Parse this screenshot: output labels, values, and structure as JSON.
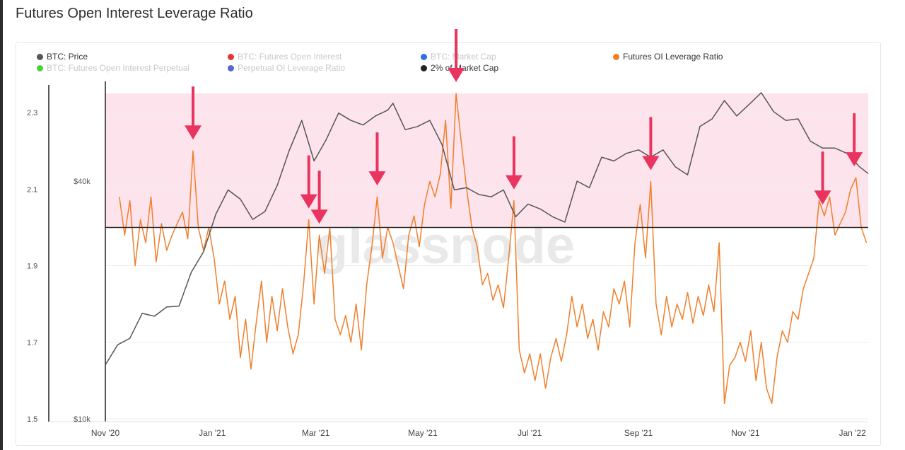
{
  "title": "Futures Open Interest Leverage Ratio",
  "watermark": "glassnode",
  "legend": [
    {
      "label": "BTC: Price",
      "color": "#555555",
      "enabled": true
    },
    {
      "label": "BTC: Futures Open Interest",
      "color": "#e23636",
      "enabled": false
    },
    {
      "label": "BTC: Market Cap",
      "color": "#2f6fe0",
      "enabled": false
    },
    {
      "label": "Futures OI Leverage Ratio",
      "color": "#f07f2a",
      "enabled": true
    },
    {
      "label": "BTC: Futures Open Interest Perpetual",
      "color": "#4cd13a",
      "enabled": false
    },
    {
      "label": "Perpetual OI Leverage Ratio",
      "color": "#5567d8",
      "enabled": false
    },
    {
      "label": "2% of Market Cap",
      "color": "#222222",
      "enabled": true
    }
  ],
  "chart_data": {
    "type": "line",
    "title": "Futures Open Interest Leverage Ratio",
    "x_ticks": [
      "Nov '20",
      "Jan '21",
      "Mar '21",
      "May '21",
      "Jul '21",
      "Sep '21",
      "Nov '21",
      "Jan '22"
    ],
    "x_range": [
      "2020-11-01",
      "2022-01-10"
    ],
    "y_left": {
      "ticks": [
        "1.5",
        "1.7",
        "1.9",
        "2.1",
        "2.3"
      ],
      "range": [
        1.5,
        2.4
      ]
    },
    "y_right": {
      "ticks": [
        "$10k",
        "$40k"
      ],
      "scale": "log"
    },
    "highlight_band": {
      "y_from": 2.0,
      "y_to": 2.35,
      "color": "#fde4ec"
    },
    "reference_line": {
      "name": "2% of Market Cap",
      "y": 2.0
    },
    "series": [
      {
        "name": "Futures OI Leverage Ratio",
        "color": "#f07f2a",
        "axis": "left",
        "points": [
          [
            "2020-11-09",
            2.08
          ],
          [
            "2020-11-12",
            1.98
          ],
          [
            "2020-11-15",
            2.07
          ],
          [
            "2020-11-18",
            1.9
          ],
          [
            "2020-11-21",
            2.02
          ],
          [
            "2020-11-24",
            1.96
          ],
          [
            "2020-11-27",
            2.08
          ],
          [
            "2020-11-30",
            1.91
          ],
          [
            "2020-12-03",
            2.01
          ],
          [
            "2020-12-06",
            1.94
          ],
          [
            "2020-12-09",
            1.98
          ],
          [
            "2020-12-12",
            2.01
          ],
          [
            "2020-12-15",
            2.04
          ],
          [
            "2020-12-18",
            1.97
          ],
          [
            "2020-12-21",
            2.2
          ],
          [
            "2020-12-24",
            2.0
          ],
          [
            "2020-12-27",
            1.94
          ],
          [
            "2020-12-30",
            2.0
          ],
          [
            "2021-01-02",
            1.92
          ],
          [
            "2021-01-05",
            1.8
          ],
          [
            "2021-01-08",
            1.86
          ],
          [
            "2021-01-11",
            1.76
          ],
          [
            "2021-01-14",
            1.82
          ],
          [
            "2021-01-17",
            1.66
          ],
          [
            "2021-01-20",
            1.76
          ],
          [
            "2021-01-23",
            1.63
          ],
          [
            "2021-01-26",
            1.75
          ],
          [
            "2021-01-29",
            1.86
          ],
          [
            "2021-02-01",
            1.7
          ],
          [
            "2021-02-04",
            1.82
          ],
          [
            "2021-02-07",
            1.73
          ],
          [
            "2021-02-10",
            1.84
          ],
          [
            "2021-02-13",
            1.74
          ],
          [
            "2021-02-16",
            1.67
          ],
          [
            "2021-02-19",
            1.72
          ],
          [
            "2021-02-22",
            1.85
          ],
          [
            "2021-02-25",
            2.02
          ],
          [
            "2021-02-28",
            1.8
          ],
          [
            "2021-03-03",
            1.98
          ],
          [
            "2021-03-06",
            1.88
          ],
          [
            "2021-03-09",
            2.0
          ],
          [
            "2021-03-12",
            1.76
          ],
          [
            "2021-03-15",
            1.72
          ],
          [
            "2021-03-18",
            1.77
          ],
          [
            "2021-03-21",
            1.7
          ],
          [
            "2021-03-24",
            1.8
          ],
          [
            "2021-03-27",
            1.68
          ],
          [
            "2021-03-30",
            1.85
          ],
          [
            "2021-04-02",
            1.95
          ],
          [
            "2021-04-05",
            2.08
          ],
          [
            "2021-04-08",
            1.92
          ],
          [
            "2021-04-11",
            2.0
          ],
          [
            "2021-04-14",
            1.96
          ],
          [
            "2021-04-17",
            1.9
          ],
          [
            "2021-04-20",
            1.84
          ],
          [
            "2021-04-23",
            1.98
          ],
          [
            "2021-04-26",
            2.03
          ],
          [
            "2021-04-29",
            1.95
          ],
          [
            "2021-05-02",
            2.06
          ],
          [
            "2021-05-05",
            2.12
          ],
          [
            "2021-05-08",
            2.08
          ],
          [
            "2021-05-11",
            2.14
          ],
          [
            "2021-05-14",
            2.28
          ],
          [
            "2021-05-17",
            2.05
          ],
          [
            "2021-05-20",
            2.35
          ],
          [
            "2021-05-23",
            2.22
          ],
          [
            "2021-05-26",
            2.1
          ],
          [
            "2021-05-29",
            2.0
          ],
          [
            "2021-06-01",
            1.95
          ],
          [
            "2021-06-04",
            1.85
          ],
          [
            "2021-06-07",
            1.88
          ],
          [
            "2021-06-10",
            1.81
          ],
          [
            "2021-06-13",
            1.85
          ],
          [
            "2021-06-16",
            1.79
          ],
          [
            "2021-06-19",
            1.92
          ],
          [
            "2021-06-22",
            2.07
          ],
          [
            "2021-06-25",
            1.68
          ],
          [
            "2021-06-28",
            1.62
          ],
          [
            "2021-07-01",
            1.67
          ],
          [
            "2021-07-04",
            1.6
          ],
          [
            "2021-07-07",
            1.67
          ],
          [
            "2021-07-10",
            1.58
          ],
          [
            "2021-07-13",
            1.66
          ],
          [
            "2021-07-16",
            1.71
          ],
          [
            "2021-07-19",
            1.65
          ],
          [
            "2021-07-22",
            1.72
          ],
          [
            "2021-07-25",
            1.82
          ],
          [
            "2021-07-28",
            1.74
          ],
          [
            "2021-07-31",
            1.8
          ],
          [
            "2021-08-03",
            1.71
          ],
          [
            "2021-08-06",
            1.76
          ],
          [
            "2021-08-09",
            1.68
          ],
          [
            "2021-08-12",
            1.78
          ],
          [
            "2021-08-15",
            1.74
          ],
          [
            "2021-08-18",
            1.84
          ],
          [
            "2021-08-21",
            1.8
          ],
          [
            "2021-08-24",
            1.86
          ],
          [
            "2021-08-27",
            1.74
          ],
          [
            "2021-08-30",
            1.96
          ],
          [
            "2021-09-02",
            2.06
          ],
          [
            "2021-09-05",
            1.92
          ],
          [
            "2021-09-08",
            2.12
          ],
          [
            "2021-09-11",
            1.8
          ],
          [
            "2021-09-14",
            1.72
          ],
          [
            "2021-09-17",
            1.82
          ],
          [
            "2021-09-20",
            1.74
          ],
          [
            "2021-09-23",
            1.8
          ],
          [
            "2021-09-26",
            1.76
          ],
          [
            "2021-09-29",
            1.83
          ],
          [
            "2021-10-02",
            1.75
          ],
          [
            "2021-10-05",
            1.82
          ],
          [
            "2021-10-08",
            1.77
          ],
          [
            "2021-10-11",
            1.85
          ],
          [
            "2021-10-14",
            1.78
          ],
          [
            "2021-10-17",
            1.96
          ],
          [
            "2021-10-20",
            1.54
          ],
          [
            "2021-10-23",
            1.64
          ],
          [
            "2021-10-26",
            1.66
          ],
          [
            "2021-10-29",
            1.7
          ],
          [
            "2021-11-01",
            1.65
          ],
          [
            "2021-11-04",
            1.73
          ],
          [
            "2021-11-07",
            1.6
          ],
          [
            "2021-11-10",
            1.7
          ],
          [
            "2021-11-13",
            1.58
          ],
          [
            "2021-11-16",
            1.54
          ],
          [
            "2021-11-19",
            1.66
          ],
          [
            "2021-11-22",
            1.73
          ],
          [
            "2021-11-25",
            1.7
          ],
          [
            "2021-11-28",
            1.78
          ],
          [
            "2021-12-01",
            1.76
          ],
          [
            "2021-12-04",
            1.84
          ],
          [
            "2021-12-07",
            1.88
          ],
          [
            "2021-12-10",
            1.92
          ],
          [
            "2021-12-13",
            2.07
          ],
          [
            "2021-12-16",
            2.03
          ],
          [
            "2021-12-19",
            2.08
          ],
          [
            "2021-12-22",
            1.98
          ],
          [
            "2021-12-25",
            2.01
          ],
          [
            "2021-12-28",
            2.04
          ],
          [
            "2021-12-31",
            2.1
          ],
          [
            "2022-01-03",
            2.13
          ],
          [
            "2022-01-06",
            2.0
          ],
          [
            "2022-01-09",
            1.96
          ]
        ]
      },
      {
        "name": "BTC: Price",
        "color": "#555555",
        "axis": "right",
        "unit": "USD",
        "points": [
          [
            "2020-11-01",
            13700
          ],
          [
            "2020-11-08",
            15400
          ],
          [
            "2020-11-15",
            16000
          ],
          [
            "2020-11-22",
            18500
          ],
          [
            "2020-11-29",
            18200
          ],
          [
            "2020-12-06",
            19200
          ],
          [
            "2020-12-13",
            19300
          ],
          [
            "2020-12-20",
            23500
          ],
          [
            "2020-12-27",
            26500
          ],
          [
            "2021-01-03",
            33000
          ],
          [
            "2021-01-10",
            38000
          ],
          [
            "2021-01-17",
            36000
          ],
          [
            "2021-01-24",
            32000
          ],
          [
            "2021-01-31",
            33500
          ],
          [
            "2021-02-07",
            39000
          ],
          [
            "2021-02-14",
            48000
          ],
          [
            "2021-02-21",
            57000
          ],
          [
            "2021-02-28",
            45000
          ],
          [
            "2021-03-07",
            51000
          ],
          [
            "2021-03-14",
            59500
          ],
          [
            "2021-03-21",
            57000
          ],
          [
            "2021-03-28",
            55500
          ],
          [
            "2021-04-04",
            58500
          ],
          [
            "2021-04-11",
            60500
          ],
          [
            "2021-04-14",
            63000
          ],
          [
            "2021-04-21",
            54000
          ],
          [
            "2021-04-28",
            55000
          ],
          [
            "2021-05-05",
            57000
          ],
          [
            "2021-05-12",
            49500
          ],
          [
            "2021-05-19",
            38000
          ],
          [
            "2021-05-26",
            38500
          ],
          [
            "2021-06-02",
            37000
          ],
          [
            "2021-06-09",
            36500
          ],
          [
            "2021-06-16",
            38000
          ],
          [
            "2021-06-23",
            32500
          ],
          [
            "2021-06-30",
            35000
          ],
          [
            "2021-07-07",
            34000
          ],
          [
            "2021-07-14",
            32500
          ],
          [
            "2021-07-21",
            31500
          ],
          [
            "2021-07-28",
            40000
          ],
          [
            "2021-08-04",
            38500
          ],
          [
            "2021-08-11",
            46000
          ],
          [
            "2021-08-18",
            45000
          ],
          [
            "2021-08-25",
            47000
          ],
          [
            "2021-09-01",
            48000
          ],
          [
            "2021-09-08",
            46000
          ],
          [
            "2021-09-15",
            48000
          ],
          [
            "2021-09-22",
            43500
          ],
          [
            "2021-09-29",
            41500
          ],
          [
            "2021-10-06",
            55000
          ],
          [
            "2021-10-13",
            57500
          ],
          [
            "2021-10-20",
            64000
          ],
          [
            "2021-10-27",
            58500
          ],
          [
            "2021-11-03",
            62500
          ],
          [
            "2021-11-10",
            67000
          ],
          [
            "2021-11-17",
            60000
          ],
          [
            "2021-11-24",
            57000
          ],
          [
            "2021-12-01",
            57500
          ],
          [
            "2021-12-08",
            50500
          ],
          [
            "2021-12-15",
            48500
          ],
          [
            "2021-12-22",
            48500
          ],
          [
            "2021-12-29",
            47000
          ],
          [
            "2022-01-05",
            43500
          ],
          [
            "2022-01-10",
            41800
          ]
        ]
      }
    ],
    "annotations": {
      "type": "arrow-down",
      "color": "#e8345f",
      "dates": [
        "2020-12-21",
        "2021-02-25",
        "2021-03-03",
        "2021-04-05",
        "2021-05-20",
        "2021-06-22",
        "2021-09-08",
        "2021-12-15",
        "2022-01-02"
      ]
    }
  }
}
